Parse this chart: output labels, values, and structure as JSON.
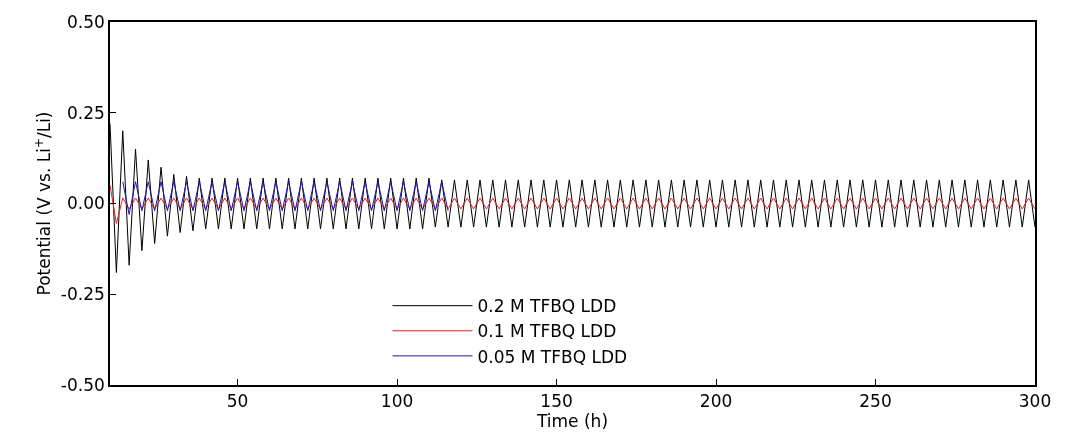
{
  "chart_data": {
    "type": "line",
    "xlabel": "Time (h)",
    "ylabel": "Potential (V vs. Li$^{+}$/Li)",
    "xlim": [
      10,
      300
    ],
    "xticks": [
      50,
      100,
      150,
      200,
      250,
      300
    ],
    "ylim": [
      -0.5,
      0.5
    ],
    "yticks": [
      {
        "value": 0.5,
        "label": "0.50"
      },
      {
        "value": 0.25,
        "label": "0.25"
      },
      {
        "value": 0,
        "label": "0.00"
      },
      {
        "value": -0.25,
        "label": "-0.25"
      },
      {
        "value": -0.5,
        "label": "-0.50"
      }
    ],
    "legend": "bottom",
    "marker": "none",
    "line_style": "solid",
    "series": [
      {
        "name": "0.2 M TFBQ LDD",
        "color": "#000000",
        "x": [
          10,
          12,
          14,
          16,
          18,
          20,
          22,
          24,
          26,
          28,
          30,
          32,
          34,
          36,
          38,
          40,
          42,
          44,
          46,
          48,
          50,
          52,
          54,
          56,
          58,
          60,
          62,
          64,
          66,
          68,
          70,
          72,
          74,
          76,
          78,
          80,
          82,
          84,
          86,
          88,
          90,
          92,
          94,
          96,
          98,
          100,
          102,
          104,
          106,
          108,
          110,
          112,
          114,
          116,
          118,
          120,
          122,
          124,
          126,
          128,
          130,
          132,
          134,
          136,
          138,
          140,
          142,
          144,
          146,
          148,
          150,
          152,
          154,
          156,
          158,
          160,
          162,
          164,
          166,
          168,
          170,
          172,
          174,
          176,
          178,
          180,
          182,
          184,
          186,
          188,
          190,
          192,
          194,
          196,
          198,
          200,
          202,
          204,
          206,
          208,
          210,
          212,
          214,
          216,
          218,
          220,
          222,
          224,
          226,
          228,
          230,
          232,
          234,
          236,
          238,
          240,
          242,
          244,
          246,
          248,
          250,
          252,
          254,
          256,
          258,
          260,
          262,
          264,
          266,
          268,
          270,
          272,
          274,
          276,
          278,
          280,
          282,
          284,
          286,
          288,
          290,
          292,
          294,
          296,
          298,
          300
        ],
        "values": [
          0.22,
          -0.19,
          0.2,
          -0.17,
          0.15,
          -0.13,
          0.12,
          -0.11,
          0.1,
          -0.09,
          0.08,
          -0.08,
          0.075,
          -0.075,
          0.07,
          -0.07,
          0.07,
          -0.07,
          0.07,
          -0.07,
          0.07,
          -0.07,
          0.07,
          -0.07,
          0.07,
          -0.07,
          0.07,
          -0.07,
          0.07,
          -0.07,
          0.07,
          -0.07,
          0.07,
          -0.07,
          0.07,
          -0.07,
          0.07,
          -0.07,
          0.07,
          -0.07,
          0.07,
          -0.07,
          0.07,
          -0.07,
          0.07,
          -0.07,
          0.07,
          -0.07,
          0.07,
          -0.07,
          0.07,
          -0.065,
          0.065,
          -0.065,
          0.065,
          -0.065,
          0.065,
          -0.065,
          0.065,
          -0.065,
          0.065,
          -0.065,
          0.065,
          -0.065,
          0.065,
          -0.065,
          0.065,
          -0.065,
          0.065,
          -0.065,
          0.065,
          -0.065,
          0.065,
          -0.065,
          0.065,
          -0.065,
          0.065,
          -0.065,
          0.065,
          -0.065,
          0.065,
          -0.065,
          0.065,
          -0.065,
          0.065,
          -0.065,
          0.065,
          -0.065,
          0.065,
          -0.065,
          0.065,
          -0.065,
          0.065,
          -0.065,
          0.065,
          -0.065,
          0.065,
          -0.065,
          0.065,
          -0.065,
          0.065,
          -0.065,
          0.065,
          -0.065,
          0.065,
          -0.065,
          0.065,
          -0.065,
          0.065,
          -0.065,
          0.065,
          -0.065,
          0.065,
          -0.065,
          0.065,
          -0.065,
          0.065,
          -0.065,
          0.065,
          -0.065,
          0.065,
          -0.065,
          0.065,
          -0.065,
          0.065,
          -0.065,
          0.065,
          -0.065,
          0.065,
          -0.065,
          0.065,
          -0.065,
          0.065,
          -0.065,
          0.065,
          -0.065,
          0.065,
          -0.065,
          0.065,
          -0.065,
          0.065,
          -0.065,
          0.065,
          -0.065,
          0.065,
          -0.065
        ]
      },
      {
        "name": "0.1 M TFBQ LDD",
        "color": "#e02020",
        "x": [
          10,
          12,
          14,
          16,
          18,
          20,
          22,
          24,
          26,
          28,
          30,
          32,
          34,
          36,
          38,
          40,
          42,
          44,
          46,
          48,
          50,
          52,
          54,
          56,
          58,
          60,
          62,
          64,
          66,
          68,
          70,
          72,
          74,
          76,
          78,
          80,
          82,
          84,
          86,
          88,
          90,
          92,
          94,
          96,
          98,
          100,
          102,
          104,
          106,
          108,
          110,
          112,
          114,
          116,
          118,
          120,
          122,
          124,
          126,
          128,
          130,
          132,
          134,
          136,
          138,
          140,
          142,
          144,
          146,
          148,
          150,
          152,
          154,
          156,
          158,
          160,
          162,
          164,
          166,
          168,
          170,
          172,
          174,
          176,
          178,
          180,
          182,
          184,
          186,
          188,
          190,
          192,
          194,
          196,
          198,
          200,
          202,
          204,
          206,
          208,
          210,
          212,
          214,
          216,
          218,
          220,
          222,
          224,
          226,
          228,
          230,
          232,
          234,
          236,
          238,
          240,
          242,
          244,
          246,
          248,
          250,
          252,
          254,
          256,
          258,
          260,
          262,
          264,
          266,
          268,
          270,
          272,
          274,
          276,
          278,
          280,
          282,
          284,
          286,
          288,
          290,
          292,
          294,
          296,
          298,
          300
        ],
        "values": [
          0.05,
          -0.055,
          0.015,
          -0.015,
          0.015,
          -0.015,
          0.015,
          -0.015,
          0.015,
          -0.015,
          0.015,
          -0.015,
          0.015,
          -0.015,
          0.015,
          -0.015,
          0.015,
          -0.015,
          0.015,
          -0.015,
          0.015,
          -0.015,
          0.015,
          -0.015,
          0.015,
          -0.015,
          0.015,
          -0.015,
          0.015,
          -0.015,
          0.015,
          -0.015,
          0.015,
          -0.015,
          0.015,
          -0.015,
          0.015,
          -0.015,
          0.015,
          -0.015,
          0.015,
          -0.015,
          0.015,
          -0.015,
          0.015,
          -0.015,
          0.015,
          -0.015,
          0.015,
          -0.015,
          0.015,
          -0.015,
          0.015,
          -0.015,
          0.015,
          -0.015,
          0.015,
          -0.015,
          0.015,
          -0.015,
          0.015,
          -0.015,
          0.015,
          -0.015,
          0.015,
          -0.015,
          0.015,
          -0.015,
          0.015,
          -0.015,
          0.015,
          -0.015,
          0.015,
          -0.015,
          0.015,
          -0.015,
          0.015,
          -0.015,
          0.015,
          -0.015,
          0.015,
          -0.015,
          0.015,
          -0.015,
          0.015,
          -0.015,
          0.015,
          -0.015,
          0.015,
          -0.015,
          0.015,
          -0.015,
          0.015,
          -0.015,
          0.015,
          -0.015,
          0.015,
          -0.015,
          0.015,
          -0.015,
          0.015,
          -0.015,
          0.015,
          -0.015,
          0.015,
          -0.015,
          0.015,
          -0.015,
          0.015,
          -0.015,
          0.015,
          -0.015,
          0.015,
          -0.015,
          0.015,
          -0.015,
          0.015,
          -0.015,
          0.015,
          -0.015,
          0.015,
          -0.015,
          0.015,
          -0.015,
          0.015,
          -0.015,
          0.015,
          -0.015,
          0.015,
          -0.015,
          0.015,
          -0.015,
          0.015,
          -0.015,
          0.015,
          -0.015,
          0.015,
          -0.015,
          0.015,
          -0.015,
          0.015,
          -0.015,
          0.015,
          -0.015,
          0.015,
          -0.015
        ]
      },
      {
        "name": "0.05 M TFBQ LDD",
        "color": "#1a1aa8",
        "x": [
          14,
          16,
          18,
          20,
          22,
          24,
          26,
          28,
          30,
          32,
          34,
          36,
          38,
          40,
          42,
          44,
          46,
          48,
          50,
          52,
          54,
          56,
          58,
          60,
          62,
          64,
          66,
          68,
          70,
          72,
          74,
          76,
          78,
          80,
          82,
          84,
          86,
          88,
          90,
          92,
          94,
          96,
          98,
          100,
          102,
          104,
          106,
          108,
          110,
          112,
          114,
          116
        ],
        "values": [
          0.06,
          -0.03,
          0.06,
          -0.02,
          0.06,
          -0.02,
          0.06,
          -0.02,
          0.06,
          -0.02,
          0.06,
          -0.02,
          0.06,
          -0.02,
          0.06,
          -0.02,
          0.06,
          -0.02,
          0.06,
          -0.02,
          0.06,
          -0.02,
          0.06,
          -0.02,
          0.06,
          -0.02,
          0.06,
          -0.02,
          0.06,
          -0.02,
          0.06,
          -0.02,
          0.06,
          -0.02,
          0.06,
          -0.02,
          0.06,
          -0.02,
          0.06,
          -0.02,
          0.06,
          -0.02,
          0.06,
          -0.02,
          0.06,
          -0.02,
          0.06,
          -0.02,
          0.06,
          -0.02,
          0.06,
          -0.02
        ]
      }
    ]
  }
}
